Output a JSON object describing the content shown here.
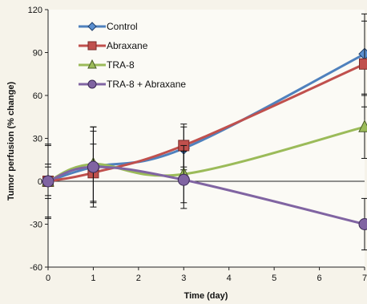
{
  "chart_data": {
    "type": "line",
    "title": "",
    "xlabel": "Time (day)",
    "ylabel": "Tumor perfusion (% change)",
    "xlim": [
      0,
      7
    ],
    "ylim": [
      -60,
      120
    ],
    "x_ticks": [
      "0",
      "1",
      "2",
      "3",
      "4",
      "5",
      "6",
      "7"
    ],
    "y_ticks": [
      "-60",
      "-30",
      "0",
      "30",
      "60",
      "90",
      "120"
    ],
    "grid": false,
    "legend_position": "top-left",
    "x": [
      0,
      1,
      3,
      7
    ],
    "series": [
      {
        "name": "Control",
        "color": "#4f81bd",
        "marker": "diamond",
        "values": [
          0,
          10,
          23,
          89
        ],
        "error": [
          12,
          28,
          15,
          28
        ]
      },
      {
        "name": "Abraxane",
        "color": "#c0504d",
        "marker": "square",
        "values": [
          0,
          6,
          25,
          82
        ],
        "error": [
          10,
          20,
          15,
          30
        ]
      },
      {
        "name": "TRA-8",
        "color": "#9bbb59",
        "marker": "triangle",
        "values": [
          0,
          12,
          5,
          38
        ],
        "error": [
          25,
          26,
          20,
          22
        ]
      },
      {
        "name": "TRA-8 + Abraxane",
        "color": "#8064a2",
        "marker": "circle",
        "values": [
          0,
          10,
          1,
          -30
        ],
        "error": [
          26,
          25,
          20,
          18
        ]
      }
    ]
  }
}
